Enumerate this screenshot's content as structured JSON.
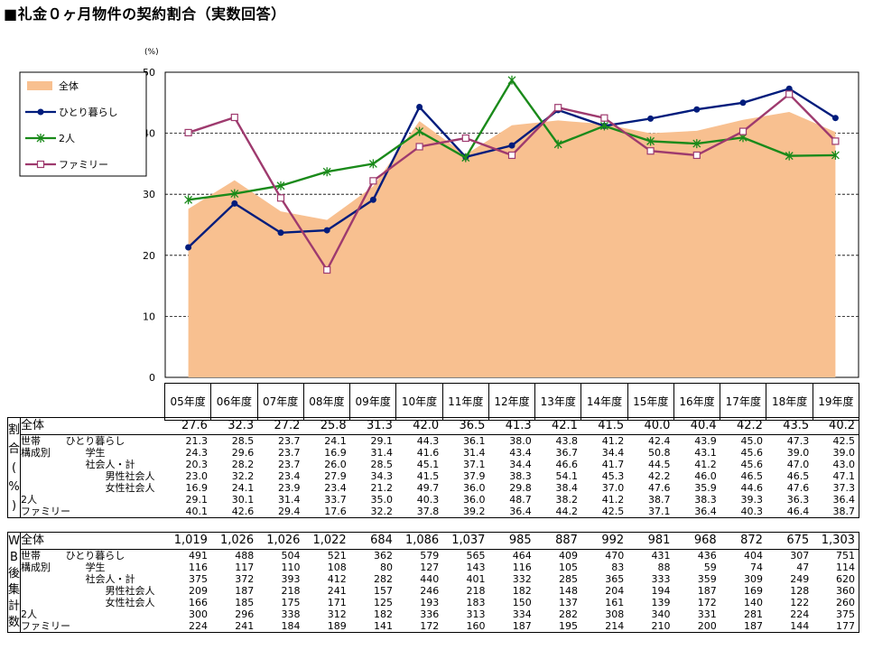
{
  "title": "■礼金０ヶ月物件の契約割合（実数回答）",
  "chart_data": {
    "type": "line",
    "unit_label": "(%)",
    "y_ticks": [
      "0",
      "10",
      "20",
      "30",
      "40",
      "50"
    ],
    "ylim": [
      0,
      50
    ],
    "grid": "dashed-horizontal",
    "legend_position": "top-left",
    "categories": [
      "05年度",
      "06年度",
      "07年度",
      "08年度",
      "09年度",
      "10年度",
      "11年度",
      "12年度",
      "13年度",
      "14年度",
      "15年度",
      "16年度",
      "17年度",
      "18年度",
      "19年度"
    ],
    "series": [
      {
        "name": "全体",
        "kind": "area",
        "color": "#F8C090",
        "values": [
          27.6,
          32.3,
          27.2,
          25.8,
          31.3,
          42.0,
          36.5,
          41.3,
          42.1,
          41.5,
          40.0,
          40.4,
          42.2,
          43.5,
          40.2
        ]
      },
      {
        "name": "ひとり暮らし",
        "kind": "line",
        "marker": "circle",
        "color": "#001C7C",
        "values": [
          21.3,
          28.5,
          23.7,
          24.1,
          29.1,
          44.3,
          36.1,
          38.0,
          43.8,
          41.2,
          42.4,
          43.9,
          45.0,
          47.3,
          42.5
        ]
      },
      {
        "name": "2人",
        "kind": "line",
        "marker": "star",
        "color": "#1A8A1A",
        "values": [
          29.1,
          30.1,
          31.4,
          33.7,
          35.0,
          40.3,
          36.0,
          48.7,
          38.2,
          41.2,
          38.7,
          38.3,
          39.3,
          36.3,
          36.4
        ]
      },
      {
        "name": "ファミリー",
        "kind": "line",
        "marker": "square",
        "color": "#9E3A6E",
        "values": [
          40.1,
          42.6,
          29.4,
          17.6,
          32.2,
          37.8,
          39.2,
          36.4,
          44.2,
          42.5,
          37.1,
          36.4,
          40.3,
          46.4,
          38.7
        ]
      }
    ]
  },
  "table1": {
    "side_label": [
      "割",
      "合",
      "(",
      "%",
      ")"
    ],
    "total": {
      "label": "全体",
      "values": [
        "27.6",
        "32.3",
        "27.2",
        "25.8",
        "31.3",
        "42.0",
        "36.5",
        "41.3",
        "42.1",
        "41.5",
        "40.0",
        "40.4",
        "42.2",
        "43.5",
        "40.2"
      ]
    },
    "group_label": [
      "世帯",
      "構成別"
    ],
    "rows": [
      {
        "label": "ひとり暮らし",
        "values": [
          "21.3",
          "28.5",
          "23.7",
          "24.1",
          "29.1",
          "44.3",
          "36.1",
          "38.0",
          "43.8",
          "41.2",
          "42.4",
          "43.9",
          "45.0",
          "47.3",
          "42.5"
        ]
      },
      {
        "label": "学生",
        "values": [
          "24.3",
          "29.6",
          "23.7",
          "16.9",
          "31.4",
          "41.6",
          "31.4",
          "43.4",
          "36.7",
          "34.4",
          "50.8",
          "43.1",
          "45.6",
          "39.0",
          "39.0"
        ]
      },
      {
        "label": "社会人・計",
        "values": [
          "20.3",
          "28.2",
          "23.7",
          "26.0",
          "28.5",
          "45.1",
          "37.1",
          "34.4",
          "46.6",
          "41.7",
          "44.5",
          "41.2",
          "45.6",
          "47.0",
          "43.0"
        ]
      },
      {
        "label": "男性社会人",
        "values": [
          "23.0",
          "32.2",
          "23.4",
          "27.9",
          "34.3",
          "41.5",
          "37.9",
          "38.3",
          "54.1",
          "45.3",
          "42.2",
          "46.0",
          "46.5",
          "46.5",
          "47.1"
        ]
      },
      {
        "label": "女性社会人",
        "values": [
          "16.9",
          "24.1",
          "23.9",
          "23.4",
          "21.2",
          "49.7",
          "36.0",
          "29.8",
          "38.4",
          "37.0",
          "47.6",
          "35.9",
          "44.6",
          "47.6",
          "37.3"
        ]
      },
      {
        "label": "2人",
        "values": [
          "29.1",
          "30.1",
          "31.4",
          "33.7",
          "35.0",
          "40.3",
          "36.0",
          "48.7",
          "38.2",
          "41.2",
          "38.7",
          "38.3",
          "39.3",
          "36.3",
          "36.4"
        ]
      },
      {
        "label": "ファミリー",
        "values": [
          "40.1",
          "42.6",
          "29.4",
          "17.6",
          "32.2",
          "37.8",
          "39.2",
          "36.4",
          "44.2",
          "42.5",
          "37.1",
          "36.4",
          "40.3",
          "46.4",
          "38.7"
        ]
      }
    ]
  },
  "table2": {
    "side_label": [
      "W",
      "B",
      "後",
      "集",
      "計",
      "数"
    ],
    "total": {
      "label": "全体",
      "values": [
        "1,019",
        "1,026",
        "1,026",
        "1,022",
        "684",
        "1,086",
        "1,037",
        "985",
        "887",
        "992",
        "981",
        "968",
        "872",
        "675",
        "1,303"
      ]
    },
    "group_label": [
      "世帯",
      "構成別"
    ],
    "rows": [
      {
        "label": "ひとり暮らし",
        "values": [
          "491",
          "488",
          "504",
          "521",
          "362",
          "579",
          "565",
          "464",
          "409",
          "470",
          "431",
          "436",
          "404",
          "307",
          "751"
        ]
      },
      {
        "label": "学生",
        "values": [
          "116",
          "117",
          "110",
          "108",
          "80",
          "127",
          "143",
          "116",
          "105",
          "83",
          "88",
          "59",
          "74",
          "47",
          "114"
        ]
      },
      {
        "label": "社会人・計",
        "values": [
          "375",
          "372",
          "393",
          "412",
          "282",
          "440",
          "401",
          "332",
          "285",
          "365",
          "333",
          "359",
          "309",
          "249",
          "620"
        ]
      },
      {
        "label": "男性社会人",
        "values": [
          "209",
          "187",
          "218",
          "241",
          "157",
          "246",
          "218",
          "182",
          "148",
          "204",
          "194",
          "187",
          "169",
          "128",
          "360"
        ]
      },
      {
        "label": "女性社会人",
        "values": [
          "166",
          "185",
          "175",
          "171",
          "125",
          "193",
          "183",
          "150",
          "137",
          "161",
          "139",
          "172",
          "140",
          "122",
          "260"
        ]
      },
      {
        "label": "2人",
        "values": [
          "300",
          "296",
          "338",
          "312",
          "182",
          "336",
          "313",
          "334",
          "282",
          "308",
          "340",
          "331",
          "281",
          "224",
          "375"
        ]
      },
      {
        "label": "ファミリー",
        "values": [
          "224",
          "241",
          "184",
          "189",
          "141",
          "172",
          "160",
          "187",
          "195",
          "214",
          "210",
          "200",
          "187",
          "144",
          "177"
        ]
      }
    ]
  }
}
